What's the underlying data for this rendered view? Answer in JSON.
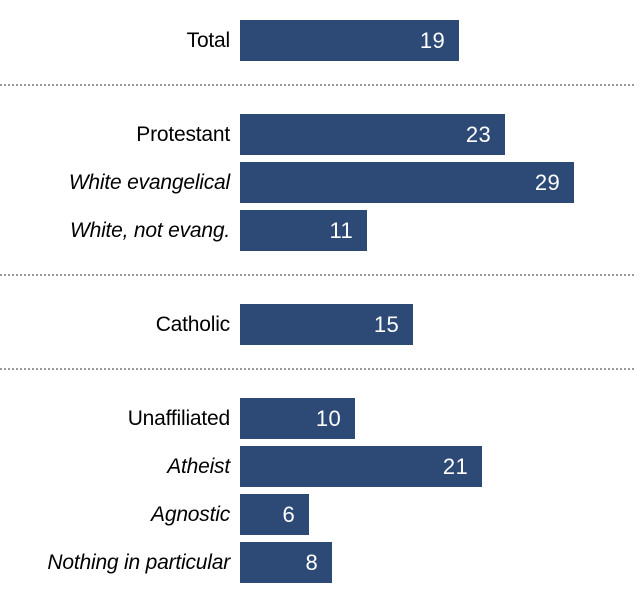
{
  "chart_data": {
    "type": "bar",
    "orientation": "horizontal",
    "title": "",
    "xlabel": "",
    "ylabel": "",
    "xlim": [
      0,
      34
    ],
    "grid": false,
    "legend": false,
    "categories": [
      "Total",
      "Protestant",
      "White evangelical",
      "White, not evang.",
      "Catholic",
      "Unaffiliated",
      "Atheist",
      "Agnostic",
      "Nothing in particular"
    ],
    "values": [
      19,
      23,
      29,
      11,
      15,
      10,
      21,
      6,
      8
    ],
    "groups": [
      {
        "items": [
          {
            "label": "Total",
            "value": 19,
            "italic": false
          }
        ]
      },
      {
        "items": [
          {
            "label": "Protestant",
            "value": 23,
            "italic": false
          },
          {
            "label": "White evangelical",
            "value": 29,
            "italic": true
          },
          {
            "label": "White, not evang.",
            "value": 11,
            "italic": true
          }
        ]
      },
      {
        "items": [
          {
            "label": "Catholic",
            "value": 15,
            "italic": false
          }
        ]
      },
      {
        "items": [
          {
            "label": "Unaffiliated",
            "value": 10,
            "italic": false
          },
          {
            "label": "Atheist",
            "value": 21,
            "italic": true
          },
          {
            "label": "Agnostic",
            "value": 6,
            "italic": true
          },
          {
            "label": "Nothing in particular",
            "value": 8,
            "italic": true
          }
        ]
      }
    ],
    "style": {
      "bar_color": "#2d4a77",
      "value_label_color": "#ffffff",
      "category_label_color": "#000000",
      "separator_color": "#9a9a9a",
      "background": "#ffffff"
    }
  }
}
